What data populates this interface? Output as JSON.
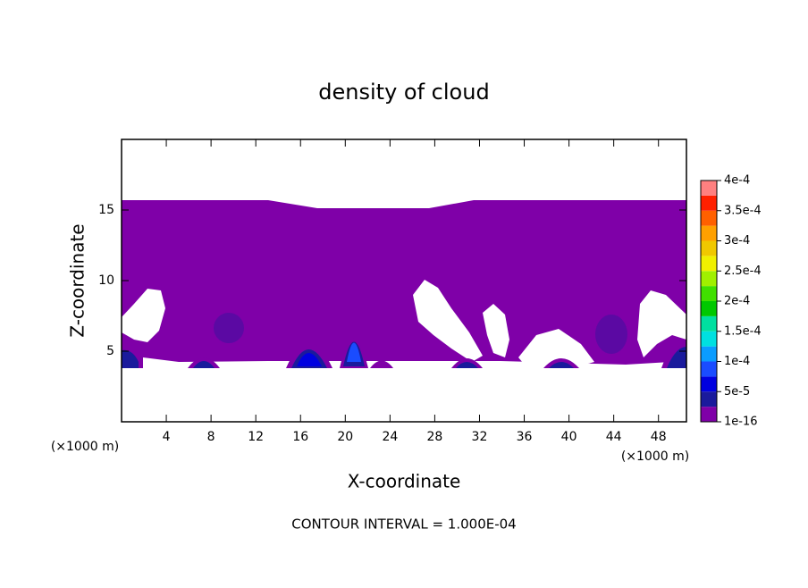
{
  "chart_data": {
    "type": "contour",
    "title": "density of cloud",
    "x_label": "X-coordinate",
    "y_label": "Z-coordinate",
    "x_unit_left": "(×1000 m)",
    "x_unit_right": "(×1000 m)",
    "footer": "CONTOUR INTERVAL = 1.000E-04",
    "xlim": [
      0,
      50.5
    ],
    "ylim": [
      0,
      20
    ],
    "xticks": [
      4,
      8,
      12,
      16,
      20,
      24,
      28,
      32,
      36,
      40,
      44,
      48
    ],
    "yticks": [
      5,
      10,
      15
    ],
    "colorbar": {
      "lim": [
        1e-16,
        0.0004
      ],
      "colors": [
        "#7f00a8",
        "#1a1a9c",
        "#0000e0",
        "#1a4cff",
        "#0a9cff",
        "#00e0e0",
        "#00e0a0",
        "#00c800",
        "#40e000",
        "#a0f000",
        "#f0f000",
        "#f0c800",
        "#ffa000",
        "#ff6000",
        "#ff2000",
        "#ff8080"
      ],
      "ticks": [
        {
          "value": 1e-16,
          "label": "1e-16"
        },
        {
          "value": 5e-05,
          "label": "5e-5"
        },
        {
          "value": 0.0001,
          "label": "1e-4"
        },
        {
          "value": 0.00015,
          "label": "1.5e-4"
        },
        {
          "value": 0.0002,
          "label": "2e-4"
        },
        {
          "value": 0.00025,
          "label": "2.5e-4"
        },
        {
          "value": 0.0003,
          "label": "3e-4"
        },
        {
          "value": 0.00035,
          "label": "3.5e-4"
        },
        {
          "value": 0.0004,
          "label": "4e-4"
        }
      ]
    }
  }
}
